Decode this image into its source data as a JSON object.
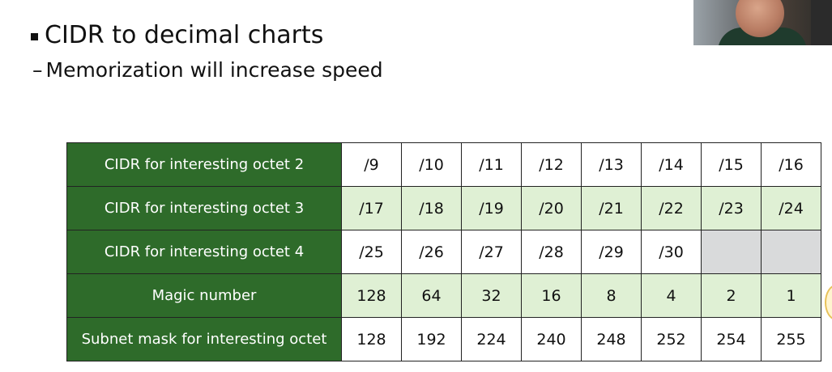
{
  "heading": {
    "bullet_text": "CIDR to decimal charts",
    "sub_text": "Memorization will increase speed"
  },
  "table": {
    "rows": [
      {
        "label": "CIDR for interesting octet 2",
        "cells": [
          "/9",
          "/10",
          "/11",
          "/12",
          "/13",
          "/14",
          "/15",
          "/16"
        ]
      },
      {
        "label": "CIDR for interesting octet 3",
        "cells": [
          "/17",
          "/18",
          "/19",
          "/20",
          "/21",
          "/22",
          "/23",
          "/24"
        ]
      },
      {
        "label": "CIDR for interesting octet 4",
        "cells": [
          "/25",
          "/26",
          "/27",
          "/28",
          "/29",
          "/30",
          "",
          ""
        ]
      },
      {
        "label": "Magic number",
        "cells": [
          "128",
          "64",
          "32",
          "16",
          "8",
          "4",
          "2",
          "1"
        ]
      },
      {
        "label": "Subnet mask for interesting octet",
        "cells": [
          "128",
          "192",
          "224",
          "240",
          "248",
          "252",
          "254",
          "255"
        ]
      }
    ]
  },
  "colors": {
    "label_green": "#2e6b2a",
    "light_green": "#dff0d4",
    "empty_gray": "#d9dadb"
  }
}
